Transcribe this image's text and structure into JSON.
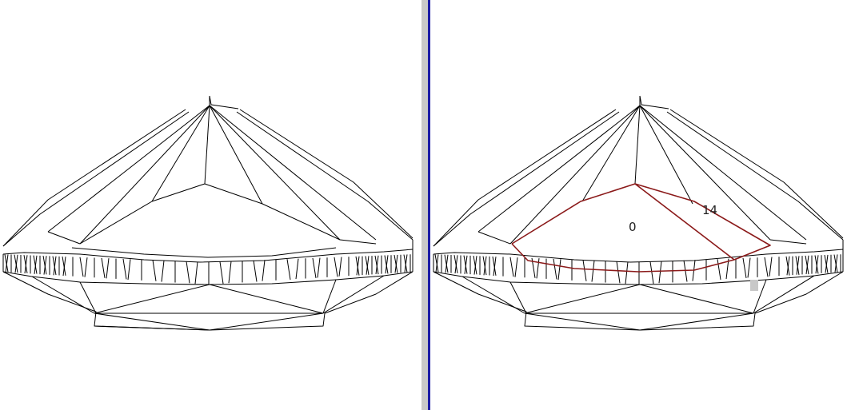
{
  "viewports": {
    "left": {
      "title": ""
    },
    "right": {
      "title": ""
    }
  },
  "facet_labels": {
    "table_facet": "0",
    "selected_facet": "14"
  },
  "colors": {
    "wireframe": "#000000",
    "highlight": "#8b1a1a",
    "splitter": "#c8c8c8",
    "splitter_edge": "#1a1aa6",
    "selection_marker": "#c8c8c8"
  }
}
